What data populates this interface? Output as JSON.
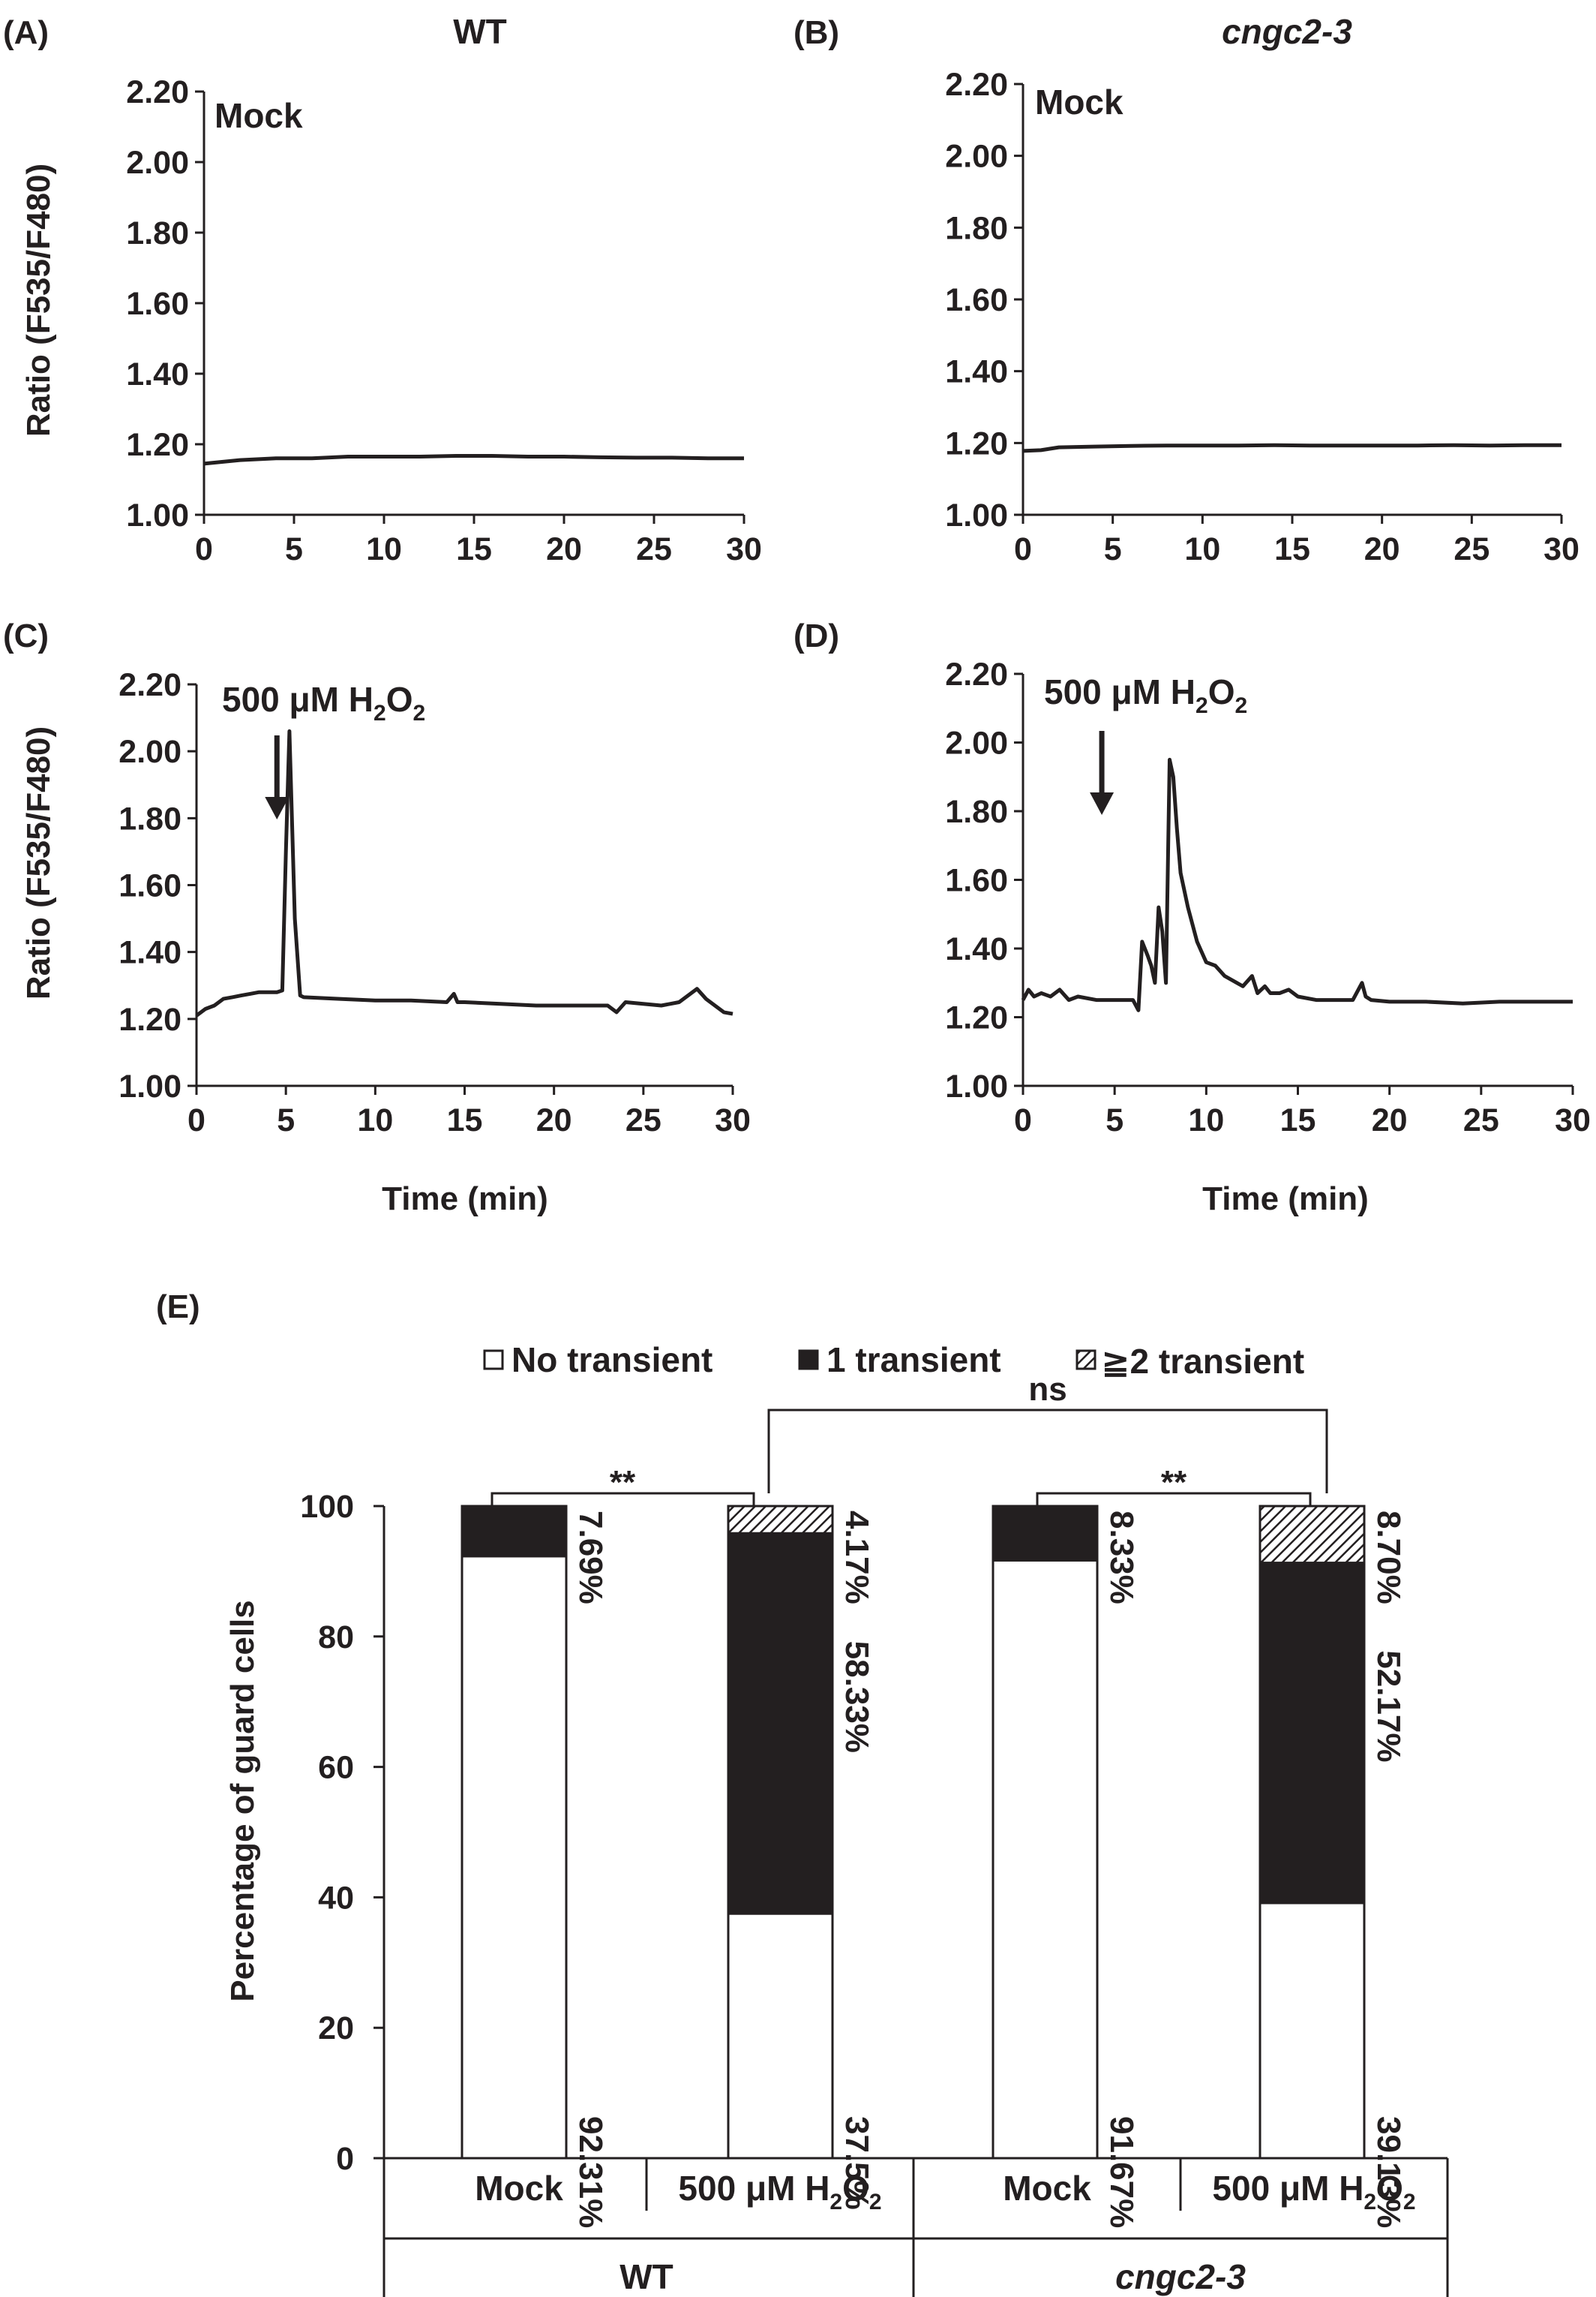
{
  "colors": {
    "ink": "#231f20",
    "white": "#ffffff"
  },
  "panels": [
    {
      "id": "A",
      "label": "(A)",
      "title": "WT",
      "title_italic": false,
      "annotation": "Mock",
      "ylabel": "Ratio (F535/F480)",
      "xlabel": "",
      "yticks": [
        "1.00",
        "1.20",
        "1.40",
        "1.60",
        "1.80",
        "2.00",
        "2.20"
      ],
      "xticks": [
        "0",
        "5",
        "10",
        "15",
        "20",
        "25",
        "30"
      ]
    },
    {
      "id": "B",
      "label": "(B)",
      "title": "cngc2-3",
      "title_italic": true,
      "annotation": "Mock",
      "ylabel": "",
      "xlabel": "",
      "yticks": [
        "1.00",
        "1.20",
        "1.40",
        "1.60",
        "1.80",
        "2.00",
        "2.20"
      ],
      "xticks": [
        "0",
        "5",
        "10",
        "15",
        "20",
        "25",
        "30"
      ]
    },
    {
      "id": "C",
      "label": "(C)",
      "title": "",
      "title_italic": false,
      "annotation_pre": "500 μM H",
      "annotation_sub1": "2",
      "annotation_mid": "O",
      "annotation_sub2": "2",
      "ylabel": "Ratio (F535/F480)",
      "xlabel": "Time (min)",
      "yticks": [
        "1.00",
        "1.20",
        "1.40",
        "1.60",
        "1.80",
        "2.00",
        "2.20"
      ],
      "xticks": [
        "0",
        "5",
        "10",
        "15",
        "20",
        "25",
        "30"
      ]
    },
    {
      "id": "D",
      "label": "(D)",
      "title": "",
      "title_italic": false,
      "annotation_pre": "500 μM H",
      "annotation_sub1": "2",
      "annotation_mid": "O",
      "annotation_sub2": "2",
      "ylabel": "",
      "xlabel": "Time (min)",
      "yticks": [
        "1.00",
        "1.20",
        "1.40",
        "1.60",
        "1.80",
        "2.00",
        "2.20"
      ],
      "xticks": [
        "0",
        "5",
        "10",
        "15",
        "20",
        "25",
        "30"
      ]
    }
  ],
  "panel_e": {
    "label": "(E)",
    "ylabel": "Percentage of guard cells",
    "yticks": [
      "0",
      "20",
      "40",
      "60",
      "80",
      "100"
    ],
    "legend": [
      "No transient",
      "1 transient",
      "≧2 transient"
    ],
    "bracket_labels": {
      "wt": "**",
      "cngc": "**",
      "between": "ns"
    },
    "group_labels": [
      {
        "text": "WT",
        "italic": false
      },
      {
        "text": "cngc2-3",
        "italic": true
      }
    ],
    "treatment_labels": {
      "mock": "Mock",
      "h2o2_pre": "500 μM H",
      "h2o2_sub1": "2",
      "h2o2_mid": "O",
      "h2o2_sub2": "2"
    },
    "pct_labels": [
      [
        "92.31%",
        "7.69%",
        ""
      ],
      [
        "37.5%",
        "58.33%",
        "4.17%"
      ],
      [
        "91.67%",
        "8.33%",
        ""
      ],
      [
        "39.13%",
        "52.17%",
        "8.70%"
      ]
    ]
  },
  "chart_data": [
    {
      "type": "line",
      "panel": "A",
      "xlabel": "",
      "ylabel": "Ratio (F535/F480)",
      "xlim": [
        0,
        30
      ],
      "ylim": [
        1.0,
        2.2
      ],
      "series": [
        {
          "x": [
            0,
            2,
            4,
            6,
            8,
            10,
            12,
            14,
            16,
            18,
            20,
            22,
            24,
            26,
            28,
            30
          ],
          "y": [
            1.145,
            1.155,
            1.16,
            1.16,
            1.165,
            1.165,
            1.165,
            1.167,
            1.167,
            1.165,
            1.165,
            1.163,
            1.162,
            1.162,
            1.16,
            1.16
          ]
        }
      ]
    },
    {
      "type": "line",
      "panel": "B",
      "xlabel": "",
      "ylabel": "",
      "xlim": [
        0,
        30
      ],
      "ylim": [
        1.0,
        2.2
      ],
      "series": [
        {
          "x": [
            0,
            1,
            2,
            4,
            6,
            8,
            10,
            12,
            14,
            16,
            18,
            20,
            22,
            24,
            26,
            28,
            30
          ],
          "y": [
            1.178,
            1.18,
            1.188,
            1.19,
            1.192,
            1.193,
            1.193,
            1.193,
            1.194,
            1.193,
            1.193,
            1.193,
            1.193,
            1.194,
            1.193,
            1.194,
            1.194
          ]
        }
      ]
    },
    {
      "type": "line",
      "panel": "C",
      "xlabel": "Time (min)",
      "ylabel": "Ratio (F535/F480)",
      "xlim": [
        0,
        30
      ],
      "ylim": [
        1.0,
        2.2
      ],
      "arrow_x": 4.5,
      "series": [
        {
          "x": [
            0,
            0.5,
            1,
            1.5,
            2,
            2.5,
            3,
            3.5,
            4,
            4.5,
            4.8,
            5.0,
            5.2,
            5.5,
            5.8,
            6,
            8,
            10,
            12,
            14,
            14.4,
            14.6,
            15,
            17,
            19,
            21,
            23,
            23.5,
            24,
            25,
            26,
            27,
            27.5,
            28,
            28.5,
            29,
            29.5,
            30
          ],
          "y": [
            1.21,
            1.23,
            1.24,
            1.26,
            1.265,
            1.27,
            1.275,
            1.28,
            1.28,
            1.28,
            1.285,
            1.7,
            2.06,
            1.5,
            1.27,
            1.265,
            1.26,
            1.255,
            1.255,
            1.25,
            1.275,
            1.25,
            1.25,
            1.245,
            1.24,
            1.24,
            1.24,
            1.22,
            1.25,
            1.245,
            1.24,
            1.25,
            1.27,
            1.29,
            1.26,
            1.24,
            1.22,
            1.215
          ]
        }
      ]
    },
    {
      "type": "line",
      "panel": "D",
      "xlabel": "Time (min)",
      "ylabel": "",
      "xlim": [
        0,
        30
      ],
      "ylim": [
        1.0,
        2.2
      ],
      "arrow_x": 4.3,
      "series": [
        {
          "x": [
            0,
            0.3,
            0.6,
            1,
            1.5,
            2,
            2.5,
            3,
            4,
            5,
            6,
            6.3,
            6.5,
            6.8,
            7,
            7.2,
            7.4,
            7.6,
            7.8,
            8.0,
            8.2,
            8.4,
            8.6,
            9,
            9.5,
            10,
            10.5,
            11,
            12,
            12.5,
            12.8,
            13.2,
            13.5,
            14,
            14.5,
            15,
            16,
            17,
            18,
            18.5,
            18.7,
            19,
            20,
            22,
            24,
            26,
            28,
            30
          ],
          "y": [
            1.25,
            1.28,
            1.26,
            1.27,
            1.26,
            1.28,
            1.25,
            1.26,
            1.25,
            1.25,
            1.25,
            1.22,
            1.42,
            1.38,
            1.35,
            1.3,
            1.52,
            1.45,
            1.3,
            1.95,
            1.9,
            1.75,
            1.62,
            1.52,
            1.42,
            1.36,
            1.35,
            1.32,
            1.29,
            1.32,
            1.27,
            1.29,
            1.27,
            1.27,
            1.28,
            1.26,
            1.25,
            1.25,
            1.25,
            1.3,
            1.26,
            1.25,
            1.245,
            1.245,
            1.24,
            1.245,
            1.245,
            1.245
          ]
        }
      ]
    },
    {
      "type": "bar",
      "panel": "E",
      "stacked": true,
      "ylabel": "Percentage of guard cells",
      "ylim": [
        0,
        100
      ],
      "categories": [
        "WT Mock",
        "WT 500 μM H2O2",
        "cngc2-3 Mock",
        "cngc2-3 500 μM H2O2"
      ],
      "series": [
        {
          "name": "No transient",
          "color": "#ffffff",
          "values": [
            92.31,
            37.5,
            91.67,
            39.13
          ]
        },
        {
          "name": "1 transient",
          "color": "#231f20",
          "values": [
            7.69,
            58.33,
            8.33,
            52.17
          ]
        },
        {
          "name": "≧2 transient",
          "color": "hatched",
          "values": [
            0,
            4.17,
            0,
            8.7
          ]
        }
      ]
    }
  ]
}
